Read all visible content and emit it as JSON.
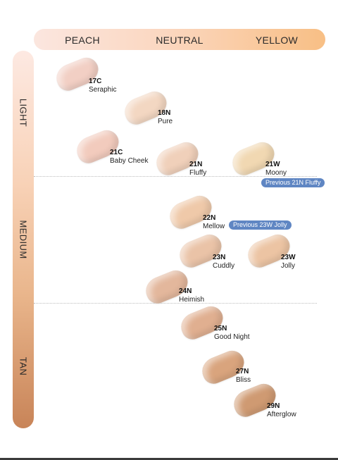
{
  "columns": [
    "PEACH",
    "NEUTRAL",
    "YELLOW"
  ],
  "rows": [
    "LIGHT",
    "MEDIUM",
    "TAN"
  ],
  "shades": [
    {
      "code": "17C",
      "name": "Seraphic",
      "color": "#f2cfc4"
    },
    {
      "code": "18N",
      "name": "Pure",
      "color": "#f3d7c2"
    },
    {
      "code": "21C",
      "name": "Baby Cheek",
      "color": "#f2cbbd"
    },
    {
      "code": "21N",
      "name": "Fluffy",
      "color": "#f0d0ba"
    },
    {
      "code": "21W",
      "name": "Moony",
      "color": "#f1d8b2"
    },
    {
      "code": "22N",
      "name": "Mellow",
      "color": "#efc9a9"
    },
    {
      "code": "23N",
      "name": "Cuddly",
      "color": "#eac3a7"
    },
    {
      "code": "23W",
      "name": "Jolly",
      "color": "#ecc4a3"
    },
    {
      "code": "24N",
      "name": "Heimish",
      "color": "#e3b79c"
    },
    {
      "code": "25N",
      "name": "Good Night",
      "color": "#e0af90"
    },
    {
      "code": "27N",
      "name": "Bliss",
      "color": "#d9a47d"
    },
    {
      "code": "29N",
      "name": "Afterglow",
      "color": "#cf9a72"
    }
  ],
  "notes": [
    "Previous 21N Fluffy",
    "Previous 23W Jolly"
  ],
  "colors": {
    "note_bg": "#5f86c3"
  }
}
